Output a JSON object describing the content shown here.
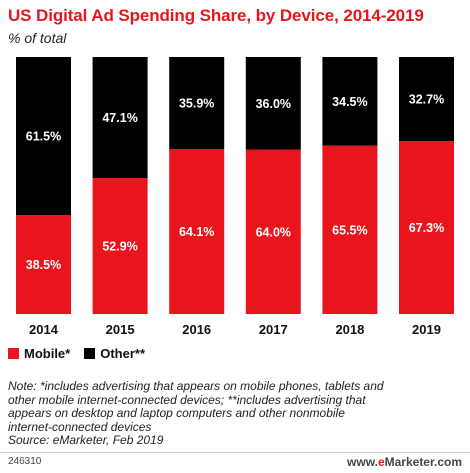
{
  "header": {
    "title": "US Digital Ad Spending Share, by Device, 2014-2019",
    "subtitle": "% of total"
  },
  "colors": {
    "mobile": "#e8161c",
    "other": "#000000",
    "title": "#e8161c"
  },
  "chart_data": {
    "type": "bar",
    "stacked": true,
    "categories": [
      "2014",
      "2015",
      "2016",
      "2017",
      "2018",
      "2019"
    ],
    "series": [
      {
        "name": "Mobile*",
        "values": [
          38.5,
          52.9,
          64.1,
          64.0,
          65.5,
          67.3
        ],
        "labels": [
          "38.5%",
          "52.9%",
          "64.1%",
          "64.0%",
          "65.5%",
          "67.3%"
        ]
      },
      {
        "name": "Other**",
        "values": [
          61.5,
          47.1,
          35.9,
          36.0,
          34.5,
          32.7
        ],
        "labels": [
          "61.5%",
          "47.1%",
          "35.9%",
          "36.0%",
          "34.5%",
          "32.7%"
        ]
      }
    ],
    "ylim": [
      0,
      100
    ],
    "legend_position": "bottom-left"
  },
  "note": {
    "line1": "Note: *includes advertising that appears on mobile phones, tablets and",
    "line2": "other mobile internet-connected devices; **includes advertising that",
    "line3": "appears on desktop and laptop computers and other nonmobile",
    "line4": "internet-connected devices",
    "source": "Source: eMarketer, Feb 2019"
  },
  "footer": {
    "chart_id": "246310",
    "brand_prefix": "www.",
    "brand_e": "e",
    "brand_suffix": "Marketer.com"
  }
}
